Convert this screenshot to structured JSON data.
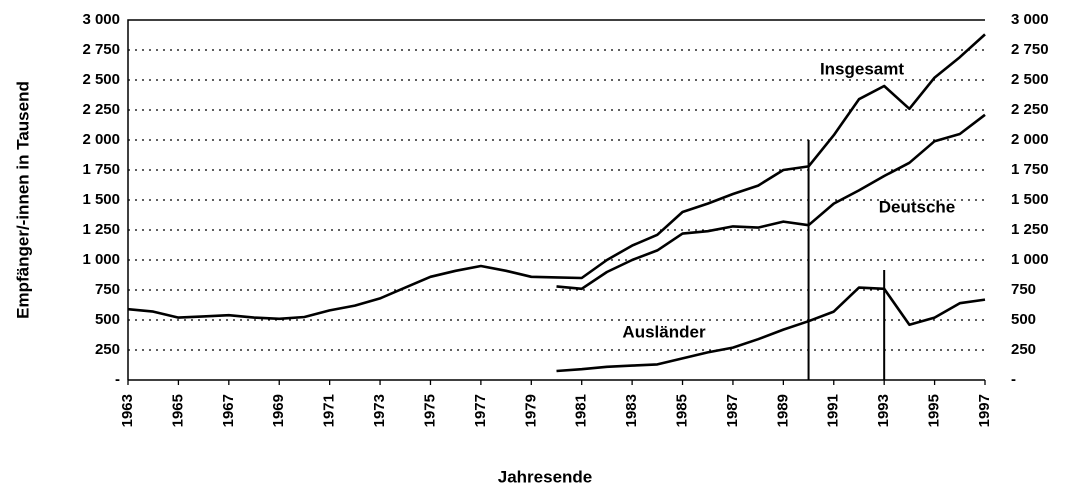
{
  "chart_data": {
    "type": "line",
    "y_label": "Empfänger/-innen in Tausend",
    "x_label": "Jahresende",
    "x": [
      1963,
      1964,
      1965,
      1966,
      1967,
      1968,
      1969,
      1970,
      1971,
      1972,
      1973,
      1974,
      1975,
      1976,
      1977,
      1978,
      1979,
      1980,
      1981,
      1982,
      1983,
      1984,
      1985,
      1986,
      1987,
      1988,
      1989,
      1990,
      1991,
      1992,
      1993,
      1994,
      1995,
      1996,
      1997
    ],
    "xlim": [
      1963,
      1997
    ],
    "xticks": [
      1963,
      1965,
      1967,
      1969,
      1971,
      1973,
      1975,
      1977,
      1979,
      1981,
      1983,
      1985,
      1987,
      1989,
      1991,
      1993,
      1995,
      1997
    ],
    "ylim": [
      0,
      3000
    ],
    "yticks": [
      {
        "value": 0,
        "label": "-"
      },
      250,
      500,
      750,
      {
        "value": 1000,
        "label": "1 000"
      },
      {
        "value": 1250,
        "label": "1 250"
      },
      {
        "value": 1500,
        "label": "1 500"
      },
      {
        "value": 1750,
        "label": "1 750"
      },
      {
        "value": 2000,
        "label": "2 000"
      },
      {
        "value": 2250,
        "label": "2 250"
      },
      {
        "value": 2500,
        "label": "2 500"
      },
      {
        "value": 2750,
        "label": "2 750"
      },
      {
        "value": 3000,
        "label": "3 000"
      }
    ],
    "grid": true,
    "series": [
      {
        "name": "Insgesamt",
        "color": "#000000",
        "values": [
          590,
          570,
          520,
          530,
          540,
          520,
          510,
          525,
          580,
          620,
          680,
          770,
          860,
          910,
          950,
          910,
          860,
          855,
          850,
          1000,
          1120,
          1210,
          1400,
          1470,
          1550,
          1620,
          1750,
          1780,
          2040,
          2340,
          2450,
          2260,
          2520,
          2690,
          2880
        ]
      },
      {
        "name": "Deutsche",
        "color": "#000000",
        "values": [
          null,
          null,
          null,
          null,
          null,
          null,
          null,
          null,
          null,
          null,
          null,
          null,
          null,
          null,
          null,
          null,
          null,
          780,
          760,
          900,
          1000,
          1080,
          1220,
          1240,
          1280,
          1270,
          1320,
          1290,
          1470,
          1580,
          1700,
          1810,
          1990,
          2050,
          2210
        ]
      },
      {
        "name": "Ausländer",
        "color": "#000000",
        "values": [
          null,
          null,
          null,
          null,
          null,
          null,
          null,
          null,
          null,
          null,
          null,
          null,
          null,
          null,
          null,
          null,
          null,
          75,
          90,
          110,
          120,
          130,
          180,
          230,
          270,
          340,
          420,
          490,
          570,
          770,
          760,
          460,
          520,
          640,
          670
        ]
      }
    ]
  }
}
